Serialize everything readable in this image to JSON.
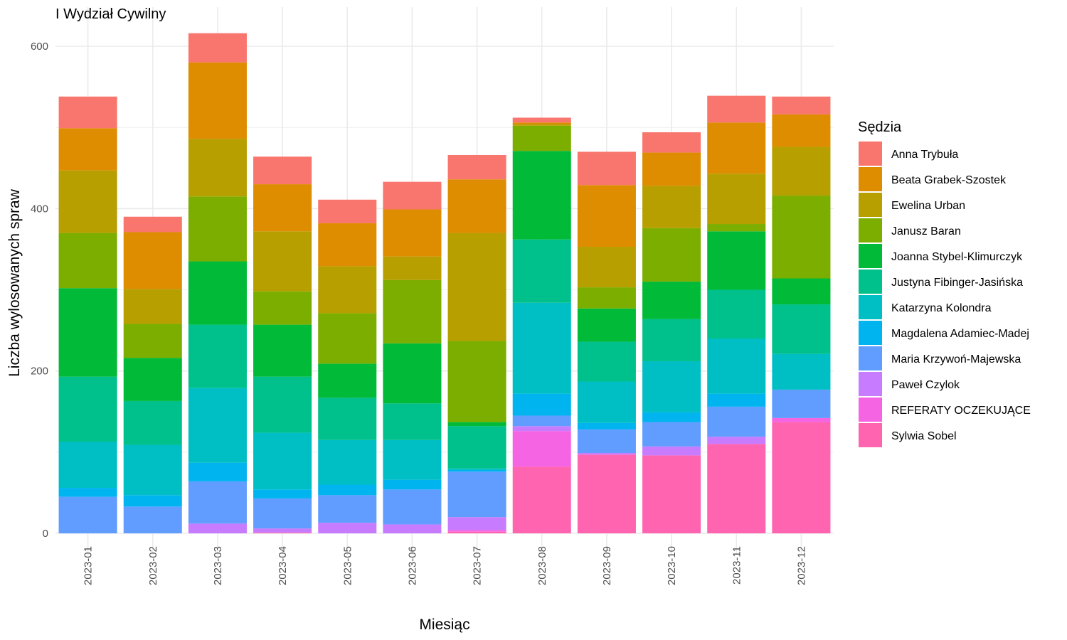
{
  "chart_data": {
    "type": "bar",
    "stacked": true,
    "title": "I Wydział Cywilny",
    "xlabel": "Miesiąc",
    "ylabel": "Liczba wylosowanych spraw",
    "ylim": [
      0,
      620
    ],
    "yticks": [
      0,
      200,
      400,
      600
    ],
    "grid": true,
    "legend_title": "Sędzia",
    "legend_position": "right",
    "categories": [
      "2023-01",
      "2023-02",
      "2023-03",
      "2023-04",
      "2023-05",
      "2023-06",
      "2023-07",
      "2023-08",
      "2023-09",
      "2023-10",
      "2023-11",
      "2023-12"
    ],
    "series": [
      {
        "name": "Anna Trybuła",
        "color": "#F8766D",
        "values": [
          39,
          19,
          36,
          34,
          29,
          34,
          30,
          6,
          41,
          25,
          33,
          22
        ]
      },
      {
        "name": "Beata Grabek-Szostek",
        "color": "#DE8C00",
        "values": [
          52,
          70,
          94,
          58,
          53,
          58,
          66,
          2,
          76,
          41,
          63,
          40
        ]
      },
      {
        "name": "Ewelina Urban",
        "color": "#B79F00",
        "values": [
          77,
          43,
          71,
          74,
          58,
          29,
          133,
          2,
          50,
          52,
          62,
          60
        ]
      },
      {
        "name": "Janusz Baran",
        "color": "#7CAE00",
        "values": [
          68,
          42,
          80,
          41,
          62,
          78,
          100,
          31,
          26,
          66,
          9,
          102
        ]
      },
      {
        "name": "Joanna Stybel-Klimurczyk",
        "color": "#00BA38",
        "values": [
          109,
          53,
          78,
          64,
          42,
          74,
          5,
          109,
          41,
          46,
          72,
          32
        ]
      },
      {
        "name": "Justyna Fibinger-Jasińska",
        "color": "#00C08B",
        "values": [
          80,
          54,
          78,
          69,
          52,
          45,
          52,
          78,
          49,
          52,
          60,
          61
        ]
      },
      {
        "name": "Katarzyna Kolondra",
        "color": "#00BFC4",
        "values": [
          57,
          62,
          92,
          70,
          55,
          49,
          2,
          112,
          51,
          63,
          68,
          44
        ]
      },
      {
        "name": "Magdalena Adamiec-Madej",
        "color": "#00B4F0",
        "values": [
          11,
          14,
          23,
          11,
          13,
          12,
          2,
          27,
          8,
          12,
          16,
          0
        ]
      },
      {
        "name": "Maria Krzywoń-Majewska",
        "color": "#619CFF",
        "values": [
          45,
          33,
          52,
          37,
          34,
          43,
          56,
          13,
          29,
          30,
          37,
          35
        ]
      },
      {
        "name": "Paweł Czylok",
        "color": "#C77CFF",
        "values": [
          0,
          0,
          12,
          5,
          13,
          11,
          16,
          6,
          2,
          11,
          9,
          0
        ]
      },
      {
        "name": "REFERATY OCZEKUJĄCE",
        "color": "#F564E3",
        "values": [
          0,
          0,
          0,
          0,
          0,
          0,
          2,
          44,
          0,
          0,
          0,
          5
        ]
      },
      {
        "name": "Sylwia Sobel",
        "color": "#FF64B0",
        "values": [
          0,
          0,
          0,
          1,
          0,
          0,
          2,
          82,
          97,
          96,
          110,
          137
        ]
      }
    ]
  }
}
